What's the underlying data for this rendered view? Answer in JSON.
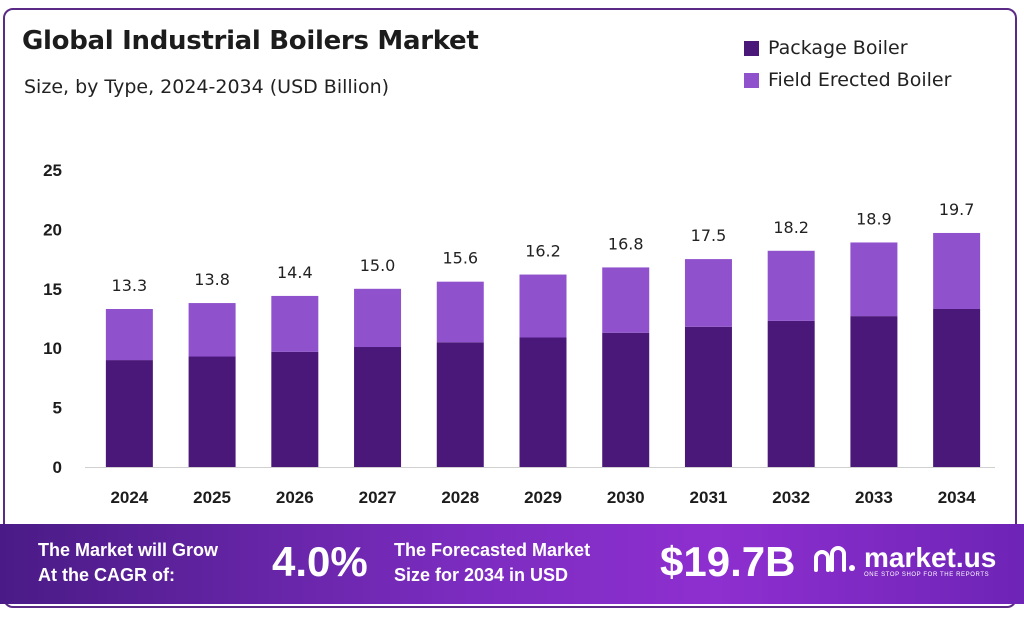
{
  "header": {
    "title": "Global Industrial Boilers Market",
    "subtitle": "Size, by Type, 2024-2034 (USD Billion)"
  },
  "colors": {
    "package": "#4a1879",
    "field": "#8f52cc",
    "frame": "#5b2a86"
  },
  "chart_data": {
    "type": "bar",
    "stacked": true,
    "title": "Global Industrial Boilers Market",
    "subtitle": "Size, by Type, 2024-2034 (USD Billion)",
    "categories": [
      "2024",
      "2025",
      "2026",
      "2027",
      "2028",
      "2029",
      "2030",
      "2031",
      "2032",
      "2033",
      "2034"
    ],
    "series": [
      {
        "name": "Package Boiler",
        "values": [
          9.0,
          9.3,
          9.7,
          10.1,
          10.5,
          10.9,
          11.3,
          11.8,
          12.3,
          12.7,
          13.3
        ]
      },
      {
        "name": "Field Erected Boiler",
        "values": [
          4.3,
          4.5,
          4.7,
          4.9,
          5.1,
          5.3,
          5.5,
          5.7,
          5.9,
          6.2,
          6.4
        ]
      }
    ],
    "totals": [
      13.3,
      13.8,
      14.4,
      15.0,
      15.6,
      16.2,
      16.8,
      17.5,
      18.2,
      18.9,
      19.7
    ],
    "total_labels": [
      "13.3",
      "13.8",
      "14.4",
      "15.0",
      "15.6",
      "16.2",
      "16.8",
      "17.5",
      "18.2",
      "18.9",
      "19.7"
    ],
    "ylim": [
      0,
      25
    ],
    "yticks": [
      0,
      5,
      10,
      15,
      20,
      25
    ],
    "grid": false,
    "legend": "top-right"
  },
  "banner": {
    "cagr_text_line1": "The Market will Grow",
    "cagr_text_line2": "At the CAGR of:",
    "cagr_value": "4.0%",
    "forecast_text_line1": "The Forecasted Market",
    "forecast_text_line2": "Size for 2034 in USD",
    "forecast_value": "$19.7B",
    "brand_name": "market.us",
    "brand_tagline": "ONE STOP SHOP FOR THE REPORTS"
  }
}
